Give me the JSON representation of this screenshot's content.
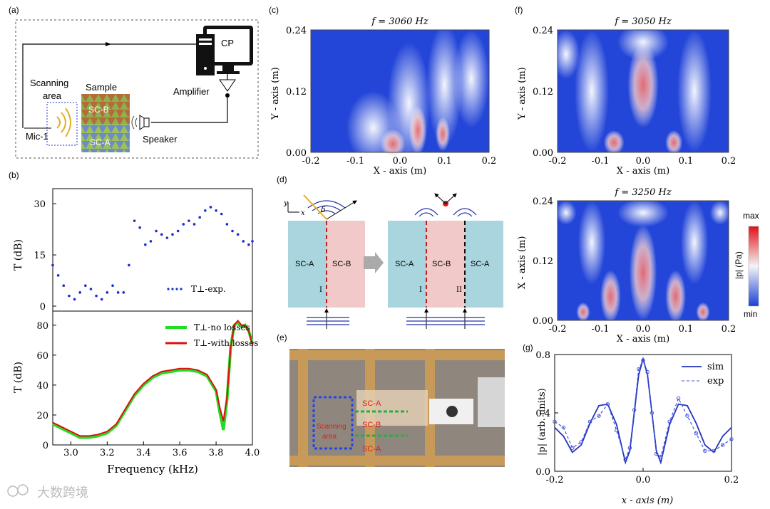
{
  "panels": {
    "a": "(a)",
    "b": "(b)",
    "c": "(c)",
    "d": "(d)",
    "e": "(e)",
    "f": "(f)",
    "g": "(g)"
  },
  "setup": {
    "cp": "CP",
    "amplifier": "Amplifier",
    "sample": "Sample",
    "scanning_area": [
      "Scanning",
      "area"
    ],
    "mic": "Mic-1",
    "speaker": "Speaker",
    "sc_b": "SC-B",
    "sc_a": "SC-A"
  },
  "maps": {
    "c_title": "f = 3060 Hz",
    "f_top_title": "f = 3050 Hz",
    "f_bottom_title": "f = 3250 Hz",
    "xlabel": "X - axis (m)",
    "ylabel": "Y - axis (m)",
    "ylabel_f_bottom": "X - axis (m)",
    "xticks": [
      "-0.2",
      "-0.1",
      "0.0",
      "0.1",
      "0.2"
    ],
    "yticks": [
      "0.00",
      "0.12",
      "0.24"
    ],
    "colorbar": {
      "max": "max",
      "min": "min",
      "label": "|p| (Pa)"
    }
  },
  "diagram_d": {
    "y": "y",
    "x": "x",
    "delta": "δ",
    "left": [
      "SC-A",
      "SC-B"
    ],
    "right": [
      "SC-A",
      "SC-B",
      "SC-A"
    ],
    "interface_marks": [
      "I",
      "I",
      "II"
    ]
  },
  "photo_e": {
    "labels": [
      "SC-A",
      "SC-B",
      "SC-A"
    ],
    "scanning": [
      "Scanning",
      "area"
    ]
  },
  "chart_data": [
    {
      "type": "line",
      "panel": "b-top",
      "xlim": [
        2.9,
        4.0
      ],
      "ylim": [
        0,
        34
      ],
      "yticks": [
        "0",
        "15",
        "30"
      ],
      "ylabel": "T (dB)",
      "ylabel_sub": "⊥",
      "legend": "T⊥-exp.",
      "series": [
        {
          "name": "T⊥-exp.",
          "x": [
            2.9,
            2.93,
            2.96,
            2.99,
            3.02,
            3.05,
            3.08,
            3.11,
            3.14,
            3.17,
            3.2,
            3.23,
            3.26,
            3.29,
            3.32,
            3.35,
            3.38,
            3.41,
            3.44,
            3.47,
            3.5,
            3.53,
            3.56,
            3.59,
            3.62,
            3.65,
            3.68,
            3.71,
            3.74,
            3.77,
            3.8,
            3.83,
            3.86,
            3.89,
            3.92,
            3.95,
            3.98,
            4.0
          ],
          "y": [
            12,
            9,
            6,
            3,
            2,
            4,
            6,
            5,
            3,
            2,
            4,
            6,
            4,
            4,
            12,
            25,
            23,
            18,
            19,
            22,
            21,
            20,
            21,
            22,
            24,
            25,
            24,
            26,
            28,
            29,
            28,
            27,
            24,
            22,
            21,
            19,
            18,
            19
          ]
        }
      ]
    },
    {
      "type": "line",
      "panel": "b-bottom",
      "xlim": [
        2.9,
        4.0
      ],
      "ylim": [
        0,
        88
      ],
      "xticks": [
        "3.0",
        "3.2",
        "3.4",
        "3.6",
        "3.8",
        "4.0"
      ],
      "yticks": [
        "0",
        "20",
        "40",
        "60",
        "80"
      ],
      "xlabel": "Frequency (kHz)",
      "ylabel": "T (dB)",
      "ylabel_sub": "⊥",
      "series": [
        {
          "name": "T⊥-no losses",
          "color": "#22dd22",
          "x": [
            2.9,
            2.95,
            3.0,
            3.05,
            3.1,
            3.15,
            3.2,
            3.25,
            3.3,
            3.35,
            3.4,
            3.45,
            3.5,
            3.55,
            3.6,
            3.65,
            3.7,
            3.75,
            3.8,
            3.82,
            3.84,
            3.86,
            3.88,
            3.9,
            3.92,
            3.94,
            3.96,
            3.98,
            4.0
          ],
          "y": [
            14,
            11,
            8,
            5,
            5,
            6,
            8,
            13,
            23,
            33,
            40,
            45,
            48,
            49,
            50,
            50,
            49,
            46,
            36,
            22,
            10,
            30,
            65,
            80,
            82,
            79,
            80,
            76,
            68
          ]
        },
        {
          "name": "T⊥-with losses",
          "color": "#dd1111",
          "x": [
            2.9,
            2.95,
            3.0,
            3.05,
            3.1,
            3.15,
            3.2,
            3.25,
            3.3,
            3.35,
            3.4,
            3.45,
            3.5,
            3.55,
            3.6,
            3.65,
            3.7,
            3.75,
            3.8,
            3.82,
            3.84,
            3.86,
            3.88,
            3.9,
            3.92,
            3.94,
            3.96,
            3.98,
            4.0
          ],
          "y": [
            15,
            12,
            9,
            6,
            6,
            7,
            9,
            14,
            24,
            34,
            41,
            46,
            49,
            50,
            51,
            51,
            50,
            47,
            37,
            25,
            16,
            32,
            65,
            80,
            83,
            80,
            80,
            76,
            67
          ]
        }
      ]
    },
    {
      "type": "line",
      "panel": "g",
      "xlim": [
        -0.2,
        0.2
      ],
      "ylim": [
        0.0,
        0.8
      ],
      "xticks": [
        "-0.2",
        "0.0",
        "0.2"
      ],
      "yticks": [
        "0.0",
        "0.4",
        "0.8"
      ],
      "xlabel": "x - axis (m)",
      "ylabel": "|p| (arb. units)",
      "series": [
        {
          "name": "sim",
          "x": [
            -0.2,
            -0.18,
            -0.16,
            -0.14,
            -0.12,
            -0.1,
            -0.08,
            -0.06,
            -0.04,
            -0.03,
            -0.02,
            -0.01,
            0.0,
            0.01,
            0.02,
            0.03,
            0.04,
            0.06,
            0.08,
            0.1,
            0.12,
            0.14,
            0.16,
            0.18,
            0.2
          ],
          "y": [
            0.3,
            0.24,
            0.13,
            0.18,
            0.33,
            0.45,
            0.46,
            0.32,
            0.06,
            0.14,
            0.4,
            0.66,
            0.77,
            0.66,
            0.4,
            0.14,
            0.06,
            0.32,
            0.46,
            0.45,
            0.33,
            0.18,
            0.13,
            0.24,
            0.3
          ]
        },
        {
          "name": "exp",
          "x": [
            -0.2,
            -0.18,
            -0.16,
            -0.14,
            -0.12,
            -0.1,
            -0.08,
            -0.06,
            -0.04,
            -0.03,
            -0.02,
            -0.01,
            0.0,
            0.01,
            0.02,
            0.03,
            0.04,
            0.06,
            0.08,
            0.1,
            0.12,
            0.14,
            0.16,
            0.18,
            0.2
          ],
          "y": [
            0.34,
            0.3,
            0.16,
            0.2,
            0.34,
            0.38,
            0.46,
            0.28,
            0.08,
            0.16,
            0.42,
            0.7,
            0.76,
            0.68,
            0.4,
            0.12,
            0.1,
            0.34,
            0.5,
            0.38,
            0.26,
            0.14,
            0.14,
            0.18,
            0.22
          ]
        }
      ]
    }
  ],
  "watermark": "大数跨境"
}
